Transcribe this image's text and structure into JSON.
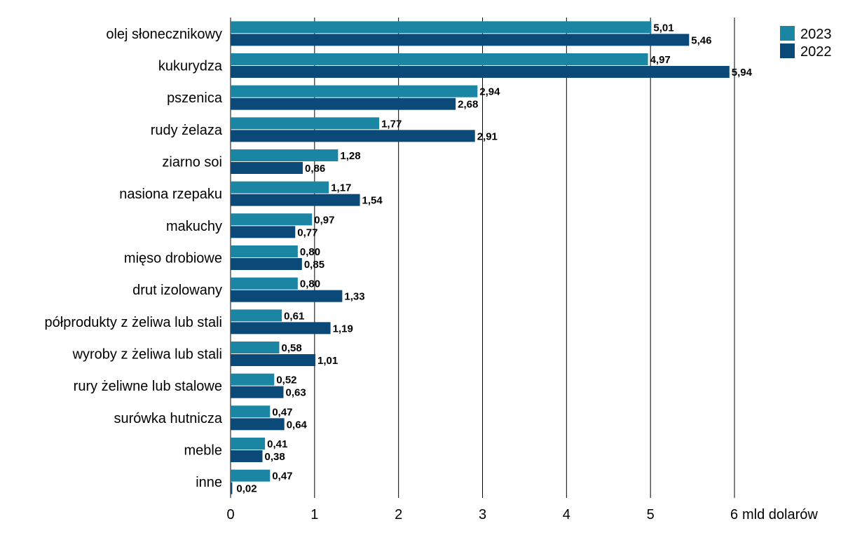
{
  "chart_data": {
    "type": "bar",
    "orientation": "horizontal",
    "title": "",
    "xlabel": "",
    "ylabel": "",
    "xlim": [
      0,
      6
    ],
    "unit_label": "mld dolarów",
    "categories": [
      "olej słonecznikowy",
      "kukurydza",
      "pszenica",
      "rudy żelaza",
      "ziarno soi",
      "nasiona rzepaku",
      "makuchy",
      "mięso drobiowe",
      "drut izolowany",
      "półprodukty z żeliwa lub stali",
      "wyroby z żeliwa lub stali",
      "rury żeliwne lub stalowe",
      "surówka hutnicza",
      "meble",
      "inne"
    ],
    "series": [
      {
        "name": "2023",
        "color": "#1a86a3",
        "values": [
          5.01,
          4.97,
          2.94,
          1.77,
          1.28,
          1.17,
          0.97,
          0.8,
          0.8,
          0.61,
          0.58,
          0.52,
          0.47,
          0.41,
          0.47
        ],
        "value_labels": [
          "5,01",
          "4,97",
          "2,94",
          "1,77",
          "1,28",
          "1,17",
          "0,97",
          "0,80",
          "0,80",
          "0,61",
          "0,58",
          "0,52",
          "0,47",
          "0,41",
          "0,47"
        ]
      },
      {
        "name": "2022",
        "color": "#0b4a78",
        "values": [
          5.46,
          5.94,
          2.68,
          2.91,
          0.86,
          1.54,
          0.77,
          0.85,
          1.33,
          1.19,
          1.01,
          0.63,
          0.64,
          0.38,
          0.02
        ],
        "value_labels": [
          "5,46",
          "5,94",
          "2,68",
          "2,91",
          "0,86",
          "1,54",
          "0,77",
          "0,85",
          "1,33",
          "1,19",
          "1,01",
          "0,63",
          "0,64",
          "0,38",
          "0,02"
        ]
      }
    ],
    "ticks": [
      0,
      1,
      2,
      3,
      4,
      5,
      6
    ],
    "tick_labels": [
      "0",
      "1",
      "2",
      "3",
      "4",
      "5",
      "6"
    ],
    "grid": true,
    "legend_position": "top-right"
  }
}
